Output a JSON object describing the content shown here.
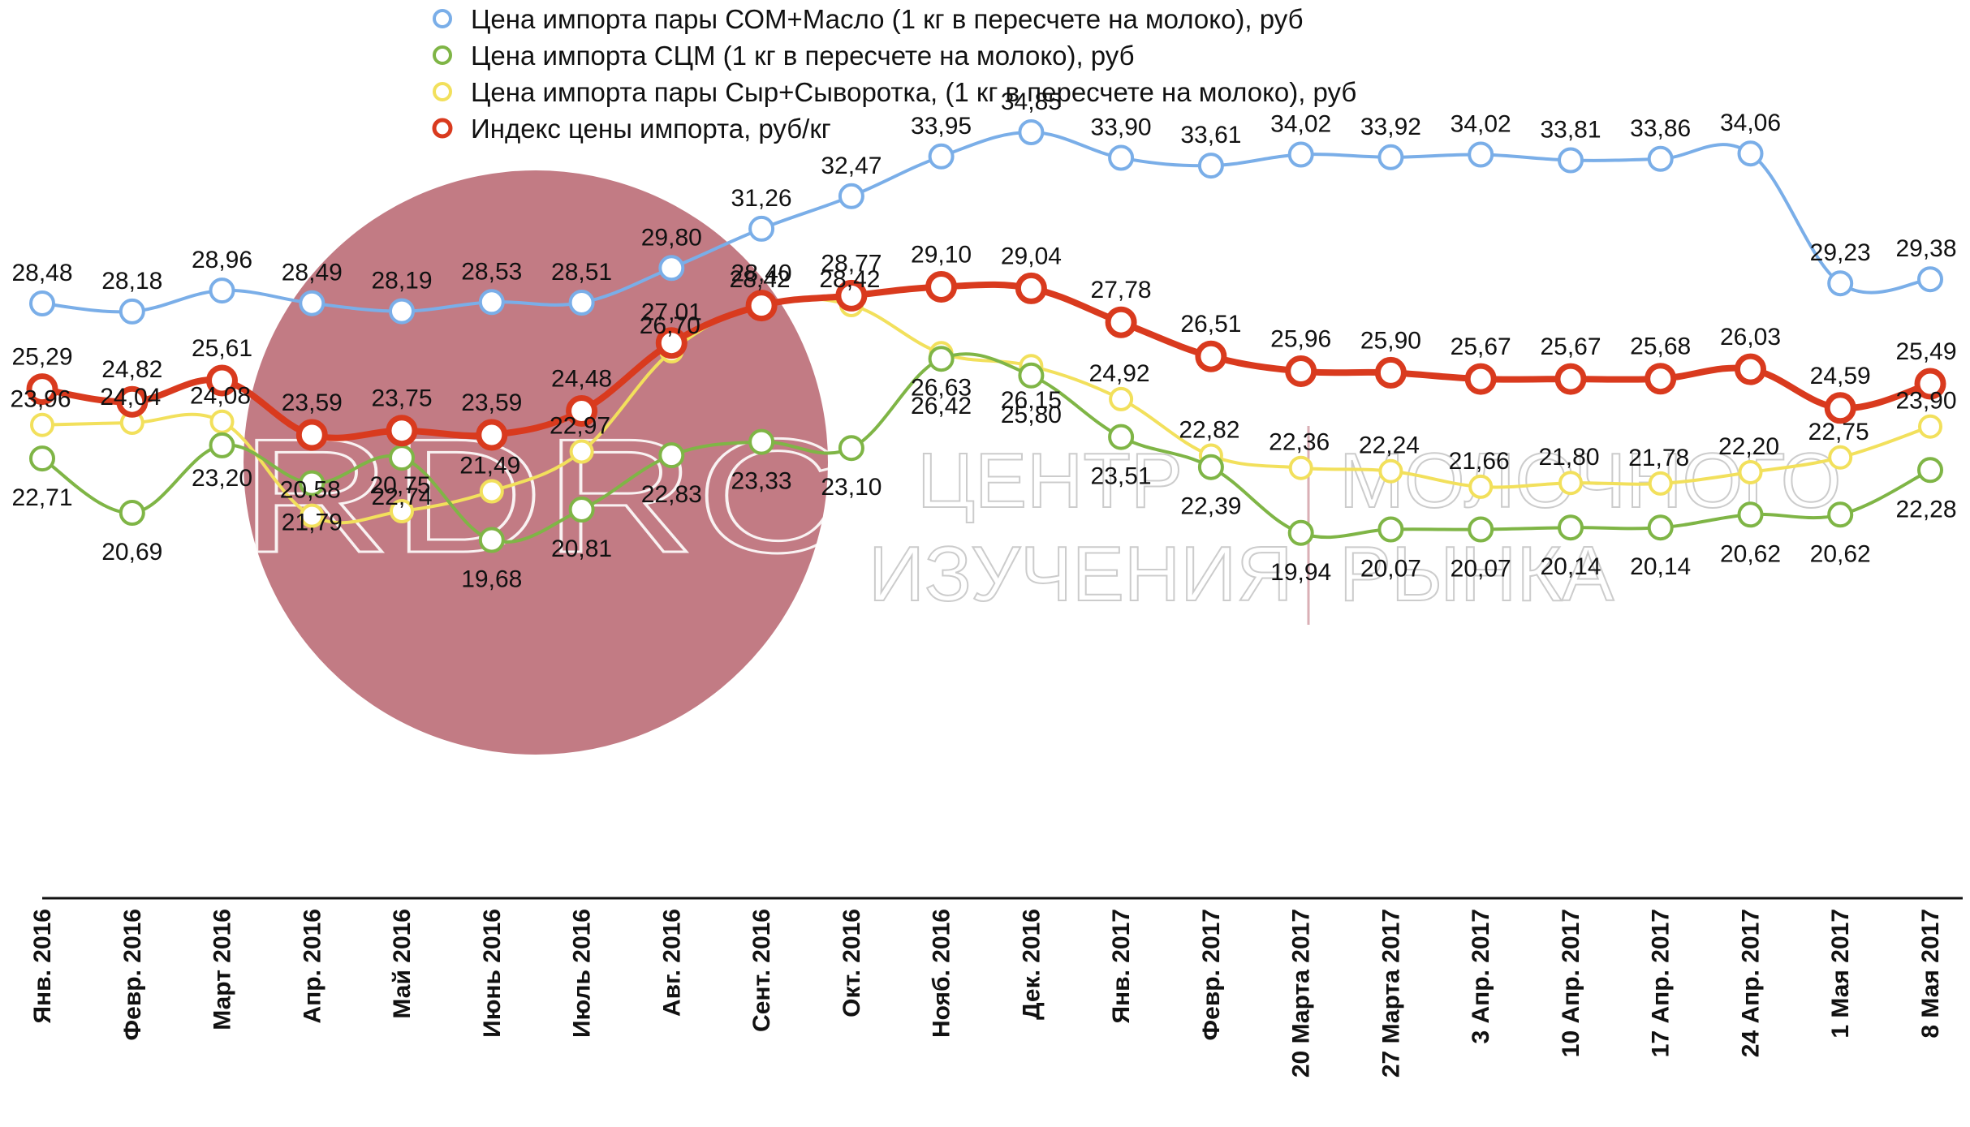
{
  "watermark": {
    "logo_letters": "RDRC",
    "text_line1_left": "ЦЕНТР",
    "text_line1_right": "МОЛОЧНОГО",
    "text_line2_left": "ИЗУЧЕНИЯ",
    "text_line2_right": "РЫНКА",
    "circle_color": "#c27b84"
  },
  "chart_data": {
    "type": "line",
    "title": "",
    "xlabel": "",
    "ylabel": "",
    "legend_position": "top-center",
    "grid": false,
    "categories": [
      "Янв. 2016",
      "Февр. 2016",
      "Март 2016",
      "Апр. 2016",
      "Май 2016",
      "Июнь 2016",
      "Июль 2016",
      "Авг. 2016",
      "Сент. 2016",
      "Окт. 2016",
      "Нояб. 2016",
      "Дек. 2016",
      "Янв. 2017",
      "Февр. 2017",
      "20 Марта 2017",
      "27 Марта 2017",
      "3 Апр. 2017",
      "10 Апр. 2017",
      "17 Апр. 2017",
      "24 Апр. 2017",
      "1 Мая 2017",
      "8 Мая 2017"
    ],
    "series": [
      {
        "name": "Цена импорта пары СОМ+Масло (1 кг в пересчете на молоко), руб",
        "color": "#7aaee8",
        "values": [
          28.48,
          28.18,
          28.96,
          28.49,
          28.19,
          28.53,
          28.51,
          29.8,
          31.26,
          32.47,
          33.95,
          34.85,
          33.9,
          33.61,
          34.02,
          33.92,
          34.02,
          33.81,
          33.86,
          34.06,
          29.23,
          29.38
        ],
        "labels": [
          "28,48",
          "28,18",
          "28,96",
          "28,49",
          "28,19",
          "28,53",
          "28,51",
          "29,80",
          "31,26",
          "32,47",
          "33,95",
          "34,85",
          "33,90",
          "33,61",
          "34,02",
          "33,92",
          "34,02",
          "33,81",
          "33,86",
          "34,06",
          "29,23",
          "29,38"
        ]
      },
      {
        "name": "Цена импорта СЦМ (1 кг в пересчете на молоко), руб",
        "color": "#7fb546",
        "values": [
          22.71,
          20.69,
          23.2,
          21.79,
          22.74,
          19.68,
          20.81,
          22.83,
          23.33,
          23.1,
          26.42,
          25.8,
          23.51,
          22.39,
          19.94,
          20.07,
          20.07,
          20.14,
          20.14,
          20.62,
          20.62,
          22.28
        ],
        "labels": [
          "22,71",
          "20,69",
          "23,20",
          "21,79",
          "22,74",
          "19,68",
          "20,81",
          "22,83",
          "23,33",
          "23,10",
          "26,42",
          "25,80",
          "23,51",
          "22,39",
          "19,94",
          "20,07",
          "20,07",
          "20,14",
          "20,14",
          "20,62",
          "20,62",
          "22,28"
        ]
      },
      {
        "name": "Цена импорта пары Сыр+Сыворотка, (1 кг в пересчете на молоко), руб",
        "color": "#f2e05c",
        "values": [
          23.96,
          24.04,
          24.08,
          20.58,
          20.75,
          21.49,
          22.97,
          26.7,
          28.42,
          28.42,
          26.63,
          26.15,
          24.92,
          22.82,
          22.36,
          22.24,
          21.66,
          21.8,
          21.78,
          22.2,
          22.75,
          23.9
        ],
        "labels": [
          "23,96",
          "24,04",
          "24,08",
          "20,58",
          "20,75",
          "21,49",
          "22,97",
          "26,70",
          "28,42",
          "28,42",
          "26,63",
          "26,15",
          "24,92",
          "22,82",
          "22,36",
          "22,24",
          "21,66",
          "21,80",
          "21,78",
          "22,20",
          "22,75",
          "23,90"
        ]
      },
      {
        "name": "Индекс цены импорта, руб/кг",
        "color": "#d93a1e",
        "values": [
          25.29,
          24.82,
          25.61,
          23.59,
          23.75,
          23.59,
          24.48,
          27.01,
          28.4,
          28.77,
          29.1,
          29.04,
          27.78,
          26.51,
          25.96,
          25.9,
          25.67,
          25.67,
          25.68,
          26.03,
          24.59,
          25.49
        ],
        "labels": [
          "25,29",
          "24,82",
          "25,61",
          "23,59",
          "23,75",
          "23,59",
          "24,48",
          "27,01",
          "28,40",
          "28,77",
          "29,10",
          "29,04",
          "27,78",
          "26,51",
          "25,96",
          "25,90",
          "25,67",
          "25,67",
          "25,68",
          "26,03",
          "24,59",
          "25,49"
        ]
      }
    ]
  }
}
